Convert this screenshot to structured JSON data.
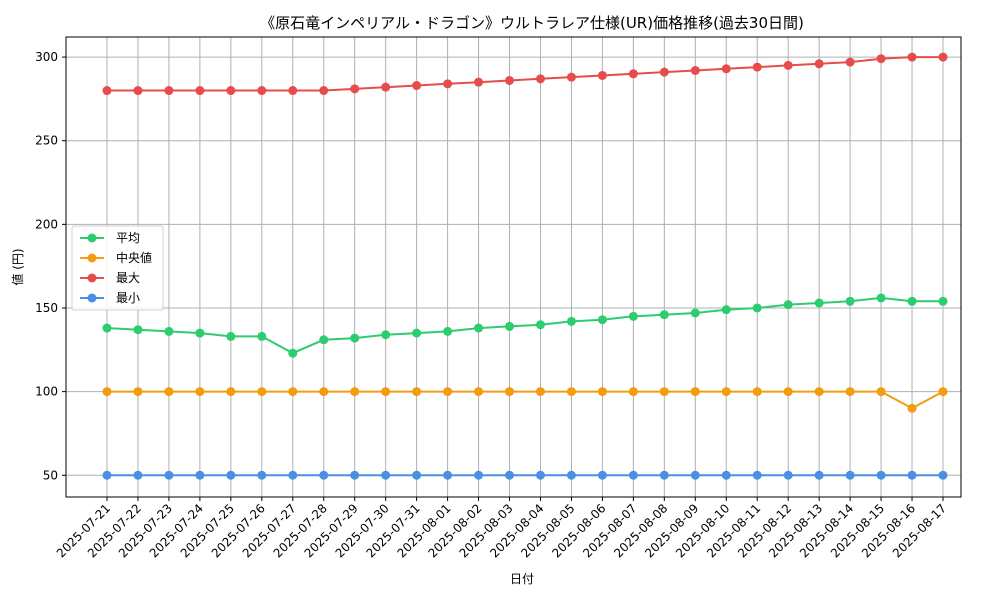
{
  "chart_data": {
    "type": "line",
    "title": "《原石竜インペリアル・ドラゴン》ウルトラレア仕様(UR)価格推移(過去30日間)",
    "xlabel": "日付",
    "ylabel": "値 (円)",
    "x": [
      "2025-07-21",
      "2025-07-22",
      "2025-07-23",
      "2025-07-24",
      "2025-07-25",
      "2025-07-26",
      "2025-07-27",
      "2025-07-28",
      "2025-07-29",
      "2025-07-30",
      "2025-07-31",
      "2025-08-01",
      "2025-08-02",
      "2025-08-03",
      "2025-08-04",
      "2025-08-05",
      "2025-08-06",
      "2025-08-07",
      "2025-08-08",
      "2025-08-09",
      "2025-08-10",
      "2025-08-11",
      "2025-08-12",
      "2025-08-13",
      "2025-08-14",
      "2025-08-15",
      "2025-08-16",
      "2025-08-17"
    ],
    "yticks": [
      50,
      100,
      150,
      200,
      250,
      300
    ],
    "ylim": [
      37,
      312
    ],
    "grid": true,
    "legend_position": "center-left",
    "series": [
      {
        "name": "平均",
        "color": "#2ecc71",
        "values": [
          138,
          137,
          136,
          135,
          133,
          133,
          123,
          131,
          132,
          134,
          135,
          136,
          138,
          139,
          140,
          142,
          143,
          145,
          146,
          147,
          149,
          150,
          152,
          153,
          154,
          156,
          154,
          154
        ]
      },
      {
        "name": "中央値",
        "color": "#f39c12",
        "values": [
          100,
          100,
          100,
          100,
          100,
          100,
          100,
          100,
          100,
          100,
          100,
          100,
          100,
          100,
          100,
          100,
          100,
          100,
          100,
          100,
          100,
          100,
          100,
          100,
          100,
          100,
          90,
          100
        ]
      },
      {
        "name": "最大",
        "color": "#e74c4c",
        "values": [
          280,
          280,
          280,
          280,
          280,
          280,
          280,
          280,
          281,
          282,
          283,
          284,
          285,
          286,
          287,
          288,
          289,
          290,
          291,
          292,
          293,
          294,
          295,
          296,
          297,
          299,
          300,
          300
        ]
      },
      {
        "name": "最小",
        "color": "#4a90e2",
        "values": [
          50,
          50,
          50,
          50,
          50,
          50,
          50,
          50,
          50,
          50,
          50,
          50,
          50,
          50,
          50,
          50,
          50,
          50,
          50,
          50,
          50,
          50,
          50,
          50,
          50,
          50,
          50,
          50
        ]
      }
    ]
  }
}
